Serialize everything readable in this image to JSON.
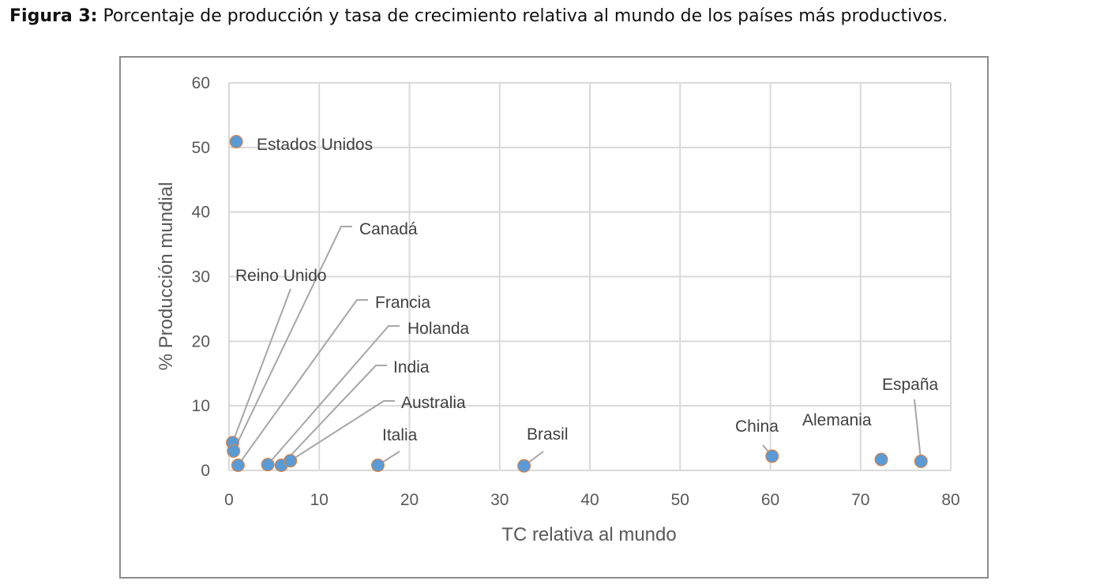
{
  "caption": {
    "prefix": "Figura 3:",
    "text": " Porcentaje de producción y tasa de crecimiento relativa al mundo de los países más productivos."
  },
  "chart_data": {
    "type": "scatter",
    "xlabel": "TC relativa al mundo",
    "ylabel": "% Producción mundial",
    "xlim": [
      0,
      80
    ],
    "ylim": [
      0,
      60
    ],
    "xticks": [
      0,
      10,
      20,
      30,
      40,
      50,
      60,
      70,
      80
    ],
    "yticks": [
      0,
      10,
      20,
      30,
      40,
      50,
      60
    ],
    "grid": true,
    "marker_color": "#5b9bd5",
    "marker_edge_color": "#ed7d31",
    "leader_color": "#a6a6a6",
    "points": [
      {
        "label": "Estados Unidos",
        "x": 0.8,
        "y": 50.9
      },
      {
        "label": "Reino Unido",
        "x": 0.4,
        "y": 4.3
      },
      {
        "label": "Canadá",
        "x": 0.5,
        "y": 3.0
      },
      {
        "label": "Francia",
        "x": 1.0,
        "y": 0.8
      },
      {
        "label": "Holanda",
        "x": 4.3,
        "y": 0.9
      },
      {
        "label": "India",
        "x": 5.8,
        "y": 0.8
      },
      {
        "label": "Australia",
        "x": 6.8,
        "y": 1.5
      },
      {
        "label": "Italia",
        "x": 16.5,
        "y": 0.8
      },
      {
        "label": "Brasil",
        "x": 32.7,
        "y": 0.7
      },
      {
        "label": "China",
        "x": 60.2,
        "y": 2.2
      },
      {
        "label": "Alemania",
        "x": 72.3,
        "y": 1.7
      },
      {
        "label": "España",
        "x": 76.7,
        "y": 1.4
      }
    ]
  }
}
